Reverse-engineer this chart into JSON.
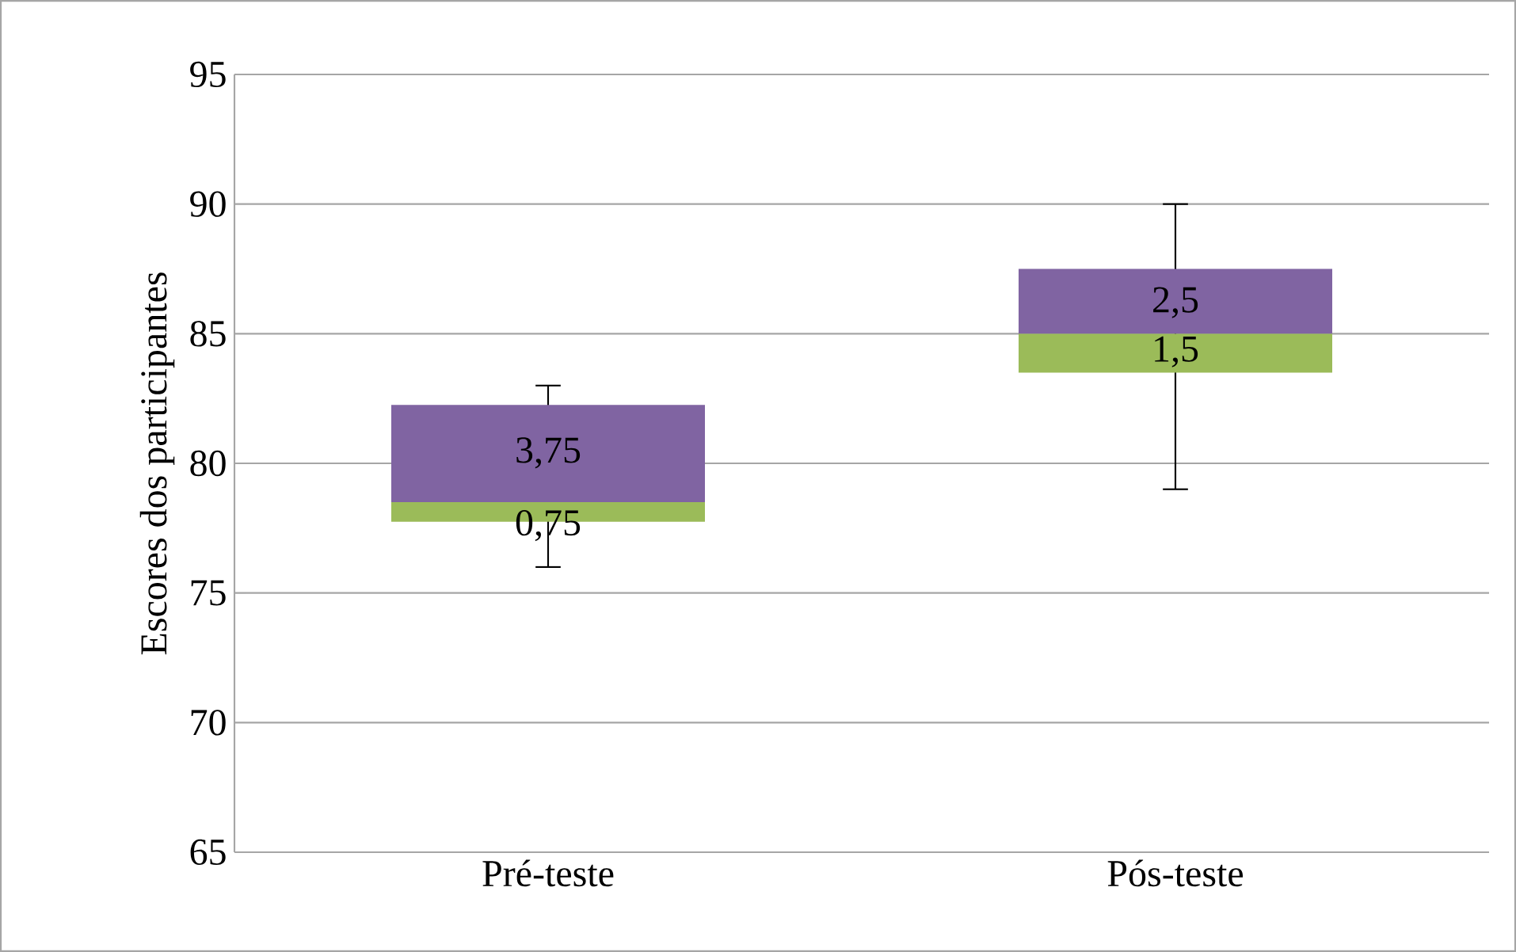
{
  "chart_data": {
    "type": "box",
    "ylabel": "Escores dos participantes",
    "categories": [
      "Pré-teste",
      "Pós-teste"
    ],
    "series": [
      {
        "color": "#8064a2",
        "colors": [
          "#9bbb59",
          "#9bbb59"
        ],
        "boxes": [
          {
            "low": 76,
            "q1": 77.75,
            "median": 78.5,
            "q3": 82.25,
            "high": 83
          },
          {
            "low": 79,
            "q1": 83.5,
            "median": 85,
            "q3": 87.5,
            "high": 90
          }
        ]
      }
    ],
    "ylim": [
      65,
      95
    ],
    "yticks": [
      65,
      70,
      75,
      80,
      85,
      90,
      95
    ],
    "grid": "y",
    "annotations": [
      {
        "text": "3,75",
        "x": "Pré-teste",
        "y": 80.4
      },
      {
        "text": "0,75",
        "x": "Pré-teste",
        "y": 77.6
      },
      {
        "text": "2,5",
        "x": "Pós-teste",
        "y": 86.2
      },
      {
        "text": "1,5",
        "x": "Pós-teste",
        "y": 84.3
      }
    ]
  }
}
